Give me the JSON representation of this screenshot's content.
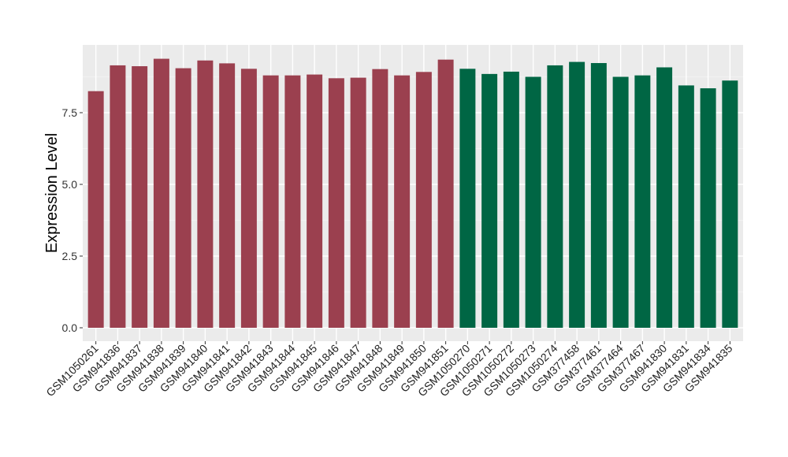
{
  "chart_data": {
    "type": "bar",
    "ylabel": "Expression Level",
    "xlabel": "",
    "ylim": [
      0,
      9.8
    ],
    "yticks": [
      0,
      2.5,
      5,
      7.5
    ],
    "ytick_labels": [
      "0.0",
      "2.5",
      "5.0",
      "7.5"
    ],
    "grid": true,
    "background": "#ebebeb",
    "group_colors": [
      "#9b404f",
      "#006644"
    ],
    "categories": [
      "GSM1050261",
      "GSM941836",
      "GSM941837",
      "GSM941838",
      "GSM941839",
      "GSM941840",
      "GSM941841",
      "GSM941842",
      "GSM941843",
      "GSM941844",
      "GSM941845",
      "GSM941846",
      "GSM941847",
      "GSM941848",
      "GSM941849",
      "GSM941850",
      "GSM941851",
      "GSM1050270",
      "GSM1050271",
      "GSM1050272",
      "GSM1050273",
      "GSM1050274",
      "GSM377458",
      "GSM377461",
      "GSM377464",
      "GSM377467",
      "GSM941830",
      "GSM941831",
      "GSM941834",
      "GSM941835"
    ],
    "values": [
      8.25,
      9.15,
      9.12,
      9.38,
      9.05,
      9.32,
      9.22,
      9.03,
      8.8,
      8.8,
      8.83,
      8.7,
      8.72,
      9.02,
      8.8,
      8.92,
      9.35,
      9.03,
      8.85,
      8.93,
      8.75,
      9.15,
      9.27,
      9.23,
      8.75,
      8.8,
      9.08,
      8.45,
      8.35,
      8.62
    ],
    "groups": [
      0,
      0,
      0,
      0,
      0,
      0,
      0,
      0,
      0,
      0,
      0,
      0,
      0,
      0,
      0,
      0,
      0,
      1,
      1,
      1,
      1,
      1,
      1,
      1,
      1,
      1,
      1,
      1,
      1,
      1
    ]
  }
}
